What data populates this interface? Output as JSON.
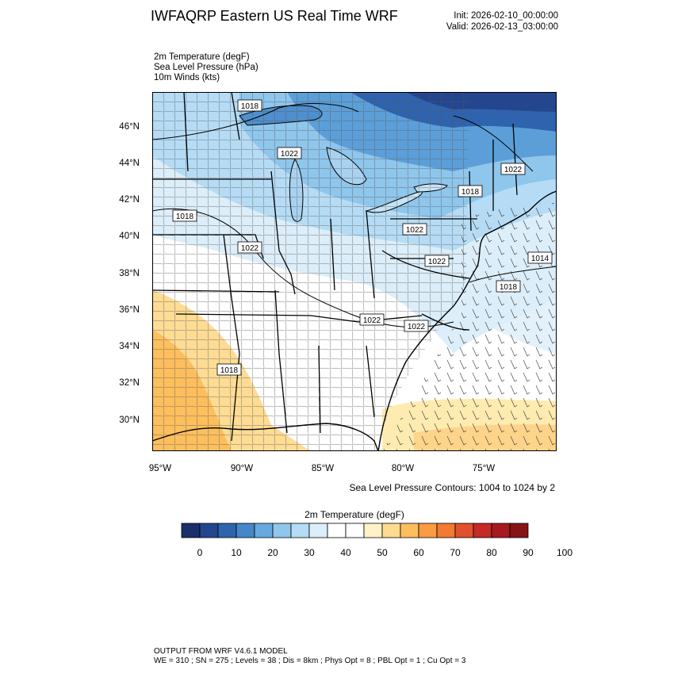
{
  "header": {
    "title": "IWFAQRP Eastern US Real Time WRF",
    "init": "Init: 2026-02-10_00:00:00",
    "valid": "Valid: 2026-02-13_03:00:00"
  },
  "fields": [
    "2m Temperature   (degF)",
    "Sea Level Pressure   (hPa)",
    "10m Winds   (kts)"
  ],
  "lat_labels": [
    "46°N",
    "44°N",
    "42°N",
    "40°N",
    "38°N",
    "36°N",
    "34°N",
    "32°N",
    "30°N"
  ],
  "lon_labels": [
    "95°W",
    "90°W",
    "85°W",
    "80°W",
    "75°W"
  ],
  "pressure_labels": [
    "1018",
    "1022",
    "1018",
    "1022",
    "1022",
    "1022",
    "1018",
    "1014",
    "1018",
    "1022",
    "1022",
    "1022",
    "1018"
  ],
  "contour_note": "Sea Level Pressure Contours: 1004 to 1024 by 2",
  "colorbar": {
    "title": "2m Temperature  (degF)",
    "colors": [
      "#1b2f6b",
      "#24468f",
      "#2f63ae",
      "#4587c9",
      "#67a9de",
      "#8fc6ec",
      "#b6dcf5",
      "#dceef9",
      "#ffffff",
      "#ffffff",
      "#fff2c9",
      "#fedb8f",
      "#fdbf5e",
      "#fb9c42",
      "#f27a33",
      "#e0512d",
      "#c52a27",
      "#a51a20",
      "#861416"
    ],
    "ticks": [
      "0",
      "10",
      "20",
      "30",
      "40",
      "50",
      "60",
      "70",
      "80",
      "90",
      "100"
    ]
  },
  "footer": {
    "line1": "OUTPUT FROM WRF V4.6.1 MODEL",
    "line2": "WE = 310 ; SN = 275 ; Levels = 38 ; Dis = 8km ; Phys Opt = 8 ; PBL Opt = 1 ; Cu Opt = 3"
  }
}
